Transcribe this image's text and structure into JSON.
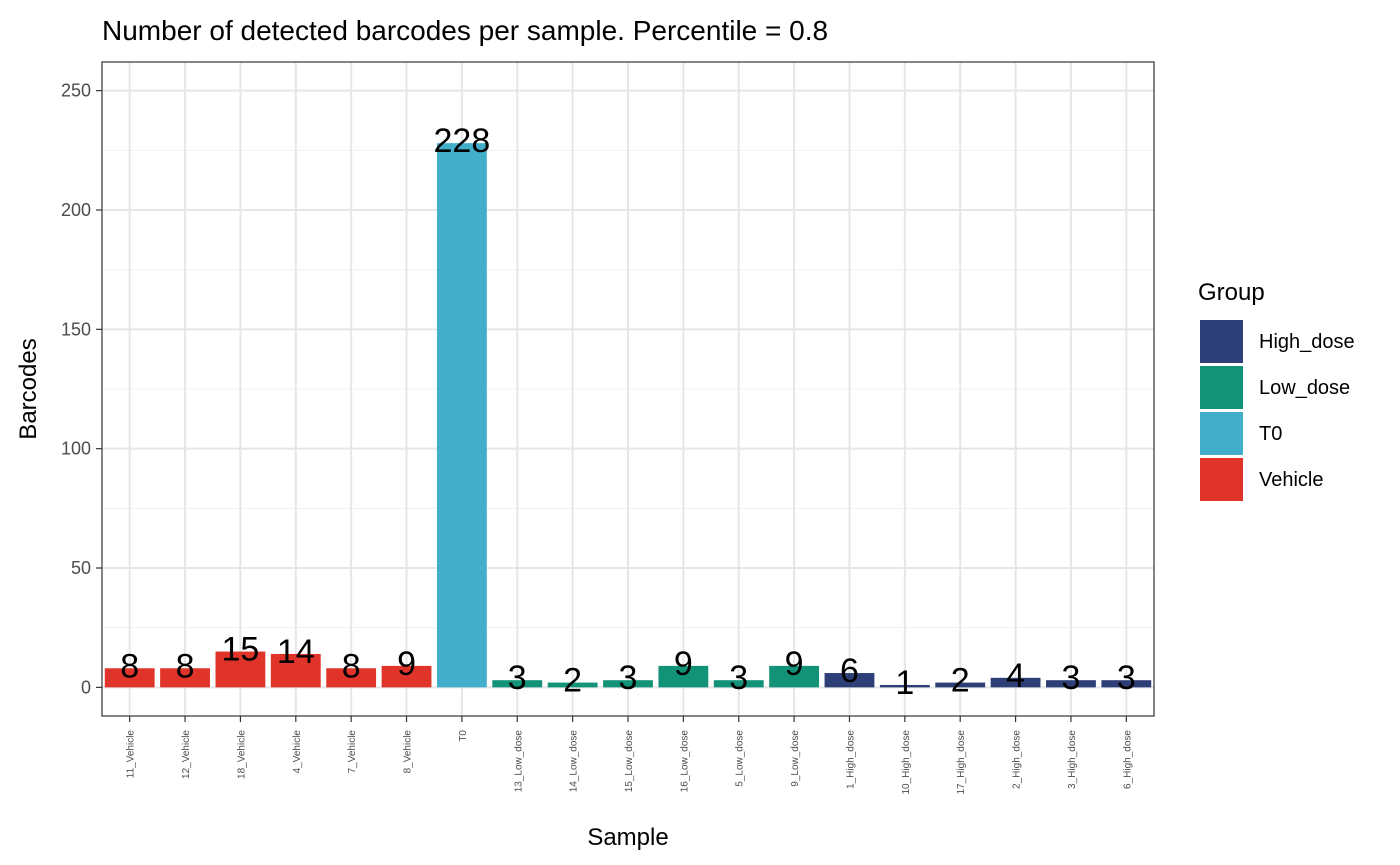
{
  "chart_data": {
    "type": "bar",
    "title": "Number of detected barcodes per sample. Percentile = 0.8",
    "xlabel": "Sample",
    "ylabel": "Barcodes",
    "ylim": [
      -12,
      262
    ],
    "yticks": [
      0,
      50,
      100,
      150,
      200,
      250
    ],
    "grid": true,
    "legend_title": "Group",
    "legend_position": "right",
    "groups": [
      {
        "name": "High_dose",
        "color": "#2E3F77"
      },
      {
        "name": "Low_dose",
        "color": "#129377"
      },
      {
        "name": "T0",
        "color": "#43AECA"
      },
      {
        "name": "Vehicle",
        "color": "#E0342A"
      }
    ],
    "categories": [
      "11_Vehicle",
      "12_Vehicle",
      "18_Vehicle",
      "4_Vehicle",
      "7_Vehicle",
      "8_Vehicle",
      "T0",
      "13_Low_dose",
      "14_Low_dose",
      "15_Low_dose",
      "16_Low_dose",
      "5_Low_dose",
      "9_Low_dose",
      "1_High_dose",
      "10_High_dose",
      "17_High_dose",
      "2_High_dose",
      "3_High_dose",
      "6_High_dose"
    ],
    "values": [
      8,
      8,
      15,
      14,
      8,
      9,
      228,
      3,
      2,
      3,
      9,
      3,
      9,
      6,
      1,
      2,
      4,
      3,
      3
    ],
    "bar_groups": [
      "Vehicle",
      "Vehicle",
      "Vehicle",
      "Vehicle",
      "Vehicle",
      "Vehicle",
      "T0",
      "Low_dose",
      "Low_dose",
      "Low_dose",
      "Low_dose",
      "Low_dose",
      "Low_dose",
      "High_dose",
      "High_dose",
      "High_dose",
      "High_dose",
      "High_dose",
      "High_dose"
    ]
  }
}
